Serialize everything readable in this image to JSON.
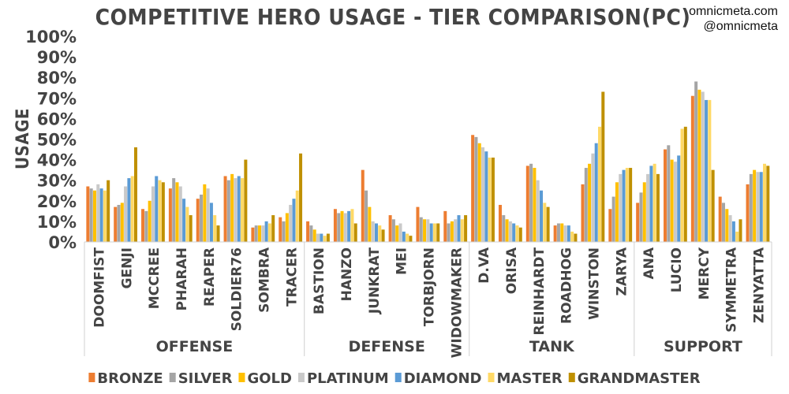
{
  "credits": [
    "omnicmeta.com",
    "@omnicmeta"
  ],
  "chart_data": {
    "type": "bar",
    "title": "COMPETITIVE HERO USAGE - TIER COMPARISON(PC)",
    "ylabel": "USAGE",
    "xlabel": "",
    "ylim": [
      0,
      100
    ],
    "y_ticks": [
      "0%",
      "10%",
      "20%",
      "30%",
      "40%",
      "50%",
      "60%",
      "70%",
      "80%",
      "90%",
      "100%"
    ],
    "grid": false,
    "legend_position": "bottom",
    "groups": [
      {
        "name": "OFFENSE",
        "categories": [
          "DOOMFIST",
          "GENJI",
          "MCCREE",
          "PHARAH",
          "REAPER",
          "SOLDIER76",
          "SOMBRA",
          "TRACER"
        ]
      },
      {
        "name": "DEFENSE",
        "categories": [
          "BASTION",
          "HANZO",
          "JUNKRAT",
          "MEI",
          "TORBJORN",
          "WIDOWMAKER"
        ]
      },
      {
        "name": "TANK",
        "categories": [
          "D.VA",
          "ORISA",
          "REINHARDT",
          "ROADHOG",
          "WINSTON",
          "ZARYA"
        ]
      },
      {
        "name": "SUPPORT",
        "categories": [
          "ANA",
          "LUCIO",
          "MERCY",
          "SYMMETRA",
          "ZENYATTA"
        ]
      }
    ],
    "categories": [
      "DOOMFIST",
      "GENJI",
      "MCCREE",
      "PHARAH",
      "REAPER",
      "SOLDIER76",
      "SOMBRA",
      "TRACER",
      "BASTION",
      "HANZO",
      "JUNKRAT",
      "MEI",
      "TORBJORN",
      "WIDOWMAKER",
      "D.VA",
      "ORISA",
      "REINHARDT",
      "ROADHOG",
      "WINSTON",
      "ZARYA",
      "ANA",
      "LUCIO",
      "MERCY",
      "SYMMETRA",
      "ZENYATTA"
    ],
    "series": [
      {
        "name": "BRONZE",
        "color": "#ED7D31",
        "values": [
          27,
          17,
          16,
          26,
          21,
          32,
          7,
          12,
          10,
          16,
          35,
          13,
          17,
          15,
          52,
          18,
          37,
          8,
          28,
          16,
          19,
          45,
          71,
          22,
          28
        ]
      },
      {
        "name": "SILVER",
        "color": "#A5A5A5",
        "values": [
          26,
          18,
          15,
          31,
          23,
          30,
          8,
          10,
          8,
          14,
          25,
          11,
          12,
          9,
          51,
          13,
          38,
          9,
          36,
          22,
          24,
          47,
          78,
          19,
          33
        ]
      },
      {
        "name": "GOLD",
        "color": "#FFC000",
        "values": [
          25,
          19,
          20,
          29,
          28,
          33,
          8,
          14,
          6,
          15,
          17,
          8,
          11,
          10,
          48,
          11,
          36,
          9,
          38,
          29,
          29,
          40,
          74,
          16,
          35
        ]
      },
      {
        "name": "PLATINUM",
        "color": "#C9C9C9",
        "values": [
          28,
          27,
          27,
          27,
          26,
          31,
          8,
          18,
          4,
          14,
          10,
          9,
          11,
          11,
          46,
          10,
          30,
          8,
          43,
          33,
          33,
          39,
          73,
          13,
          34
        ]
      },
      {
        "name": "DIAMOND",
        "color": "#5B9BD5",
        "values": [
          26,
          31,
          32,
          21,
          19,
          32,
          10,
          21,
          4,
          15,
          9,
          5,
          9,
          13,
          44,
          9,
          25,
          8,
          48,
          35,
          37,
          42,
          69,
          10,
          34
        ]
      },
      {
        "name": "MASTER",
        "color": "#FFD966",
        "values": [
          25,
          32,
          30,
          17,
          13,
          31,
          9,
          25,
          3,
          16,
          8,
          4,
          9,
          11,
          41,
          8,
          19,
          5,
          56,
          36,
          38,
          55,
          69,
          5,
          38
        ]
      },
      {
        "name": "GRANDMASTER",
        "color": "#BF9000",
        "values": [
          30,
          46,
          29,
          13,
          8,
          40,
          13,
          43,
          4,
          9,
          6,
          3,
          9,
          13,
          41,
          7,
          17,
          4,
          73,
          36,
          33,
          56,
          35,
          11,
          37
        ]
      }
    ]
  }
}
